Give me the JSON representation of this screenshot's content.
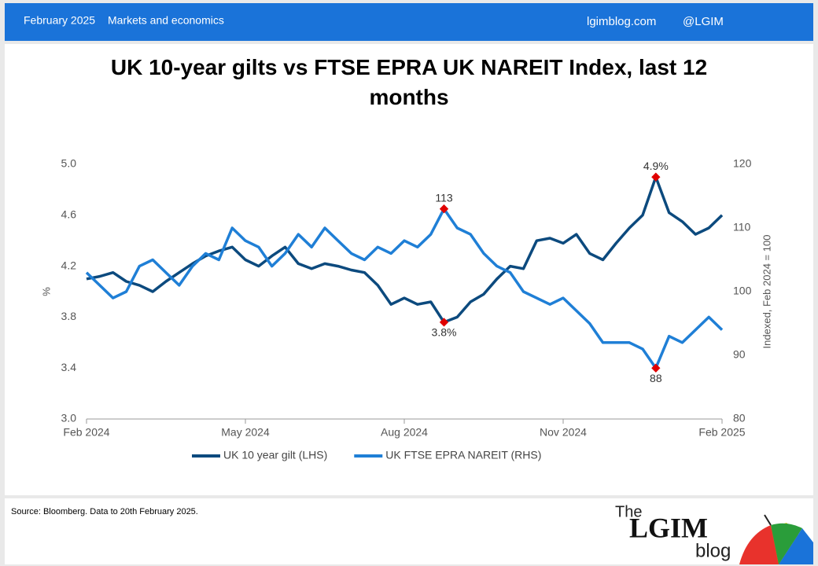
{
  "header": {
    "date": "February 2025",
    "section": "Markets and economics",
    "site": "lgimblog.com",
    "handle": "@LGIM"
  },
  "chart_data": {
    "type": "line",
    "title": "UK 10-year gilts vs FTSE EPRA UK NAREIT Index, last 12 months",
    "ylabel": "%",
    "y2label": "Indexed, Feb 2024 = 100",
    "x": [
      0,
      0.25,
      0.5,
      0.75,
      1,
      1.25,
      1.5,
      1.75,
      2,
      2.25,
      2.5,
      2.75,
      3,
      3.25,
      3.5,
      3.75,
      4,
      4.25,
      4.5,
      4.75,
      5,
      5.25,
      5.5,
      5.75,
      6,
      6.25,
      6.5,
      6.75,
      7,
      7.25,
      7.5,
      7.75,
      8,
      8.25,
      8.5,
      8.75,
      9,
      9.25,
      9.5,
      9.75,
      10,
      10.25,
      10.5,
      10.75,
      11,
      11.25,
      11.5,
      11.75,
      12
    ],
    "xlim": [
      0,
      12
    ],
    "xticks": [
      {
        "value": 0,
        "label": "Feb 2024"
      },
      {
        "value": 3,
        "label": "May 2024"
      },
      {
        "value": 6,
        "label": "Aug 2024"
      },
      {
        "value": 9,
        "label": "Nov 2024"
      },
      {
        "value": 12,
        "label": "Feb 2025"
      }
    ],
    "ylim": [
      3,
      5
    ],
    "yticks": [
      {
        "value": 3,
        "label": "3.0"
      },
      3.4,
      3.8,
      4.2,
      4.6,
      {
        "value": 5,
        "label": "5.0"
      }
    ],
    "y2lim": [
      80,
      120
    ],
    "y2ticks": [
      80,
      90,
      100,
      110,
      120
    ],
    "grid": false,
    "series": [
      {
        "name": "UK 10 year gilt (LHS)",
        "color": "#0c4a7e",
        "axis": "y",
        "values": [
          4.1,
          4.12,
          4.15,
          4.08,
          4.05,
          4.0,
          4.08,
          4.15,
          4.22,
          4.28,
          4.32,
          4.35,
          4.25,
          4.2,
          4.28,
          4.35,
          4.22,
          4.18,
          4.22,
          4.2,
          4.17,
          4.15,
          4.05,
          3.9,
          3.95,
          3.9,
          3.92,
          3.76,
          3.8,
          3.92,
          3.98,
          4.1,
          4.2,
          4.18,
          4.4,
          4.42,
          4.38,
          4.45,
          4.3,
          4.25,
          4.38,
          4.5,
          4.6,
          4.9,
          4.62,
          4.55,
          4.45,
          4.5,
          4.6
        ]
      },
      {
        "name": "UK FTSE EPRA NAREIT (RHS)",
        "color": "#1f7fd6",
        "axis": "y2",
        "values": [
          103,
          101,
          99,
          100,
          104,
          105,
          103,
          101,
          104,
          106,
          105,
          110,
          108,
          107,
          104,
          106,
          109,
          107,
          110,
          108,
          106,
          105,
          107,
          106,
          108,
          107,
          109,
          113,
          110,
          109,
          106,
          104,
          103,
          100,
          99,
          98,
          99,
          97,
          95,
          92,
          92,
          92,
          91,
          88,
          93,
          92,
          94,
          96,
          94
        ]
      }
    ],
    "annotations": [
      {
        "text": "4.9%",
        "x": 10.75,
        "y": 4.9,
        "axis": "y",
        "position": "above"
      },
      {
        "text": "113",
        "x": 6.75,
        "y": 113,
        "axis": "y2",
        "position": "above"
      },
      {
        "text": "3.8%",
        "x": 6.75,
        "y": 3.76,
        "axis": "y",
        "position": "below"
      },
      {
        "text": "88",
        "x": 10.75,
        "y": 88,
        "axis": "y2",
        "position": "below"
      }
    ],
    "legend": "bottom"
  },
  "footer": {
    "source": "Source: Bloomberg. Data to 20th February 2025.",
    "logo_the": "The",
    "logo_name": "LGIM",
    "logo_tag": "blog"
  }
}
